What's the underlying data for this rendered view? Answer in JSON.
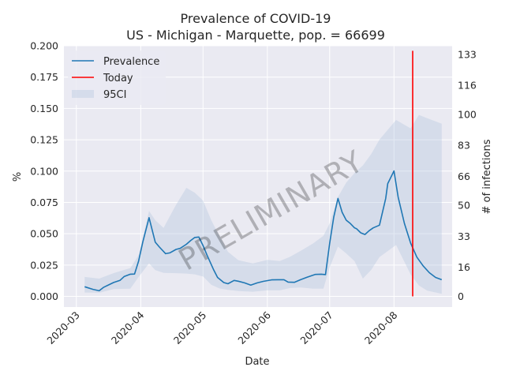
{
  "chart_data": {
    "type": "line",
    "title": "Prevalence of COVID-19",
    "subtitle": "US - Michigan - Marquette, pop. = 66699",
    "xlabel": "Date",
    "ylabel_left": "%",
    "ylabel_right": "# of infections",
    "x_ticks": [
      "2020-03",
      "2020-04",
      "2020-05",
      "2020-06",
      "2020-07",
      "2020-08"
    ],
    "x_tick_dates": [
      "2020-03-01",
      "2020-04-01",
      "2020-05-01",
      "2020-06-01",
      "2020-07-01",
      "2020-08-01"
    ],
    "xlim": [
      "2020-02-24",
      "2020-08-29"
    ],
    "ylim_left": [
      -0.0085,
      0.2
    ],
    "y_ticks_left": [
      "0.000",
      "0.025",
      "0.050",
      "0.075",
      "0.100",
      "0.125",
      "0.150",
      "0.175",
      "0.200"
    ],
    "y_tick_values_left": [
      0,
      0.025,
      0.05,
      0.075,
      0.1,
      0.125,
      0.15,
      0.175,
      0.2
    ],
    "y_ticks_right": [
      "0",
      "16",
      "33",
      "50",
      "66",
      "83",
      "100",
      "116",
      "133"
    ],
    "y_tick_values_right": [
      0,
      16,
      33,
      50,
      66,
      83,
      100,
      116,
      133
    ],
    "grid": true,
    "legend_position": "upper-left",
    "legend": [
      "Prevalence",
      "Today",
      "95CI"
    ],
    "watermark": "PRELIMINARY",
    "today": "2020-08-10",
    "series": [
      {
        "name": "Prevalence",
        "color": "#1f77b4",
        "x": [
          "2020-03-05",
          "2020-03-09",
          "2020-03-12",
          "2020-03-14",
          "2020-03-17",
          "2020-03-19",
          "2020-03-22",
          "2020-03-24",
          "2020-03-27",
          "2020-03-29",
          "2020-03-31",
          "2020-04-02",
          "2020-04-05",
          "2020-04-08",
          "2020-04-10",
          "2020-04-13",
          "2020-04-15",
          "2020-04-18",
          "2020-04-20",
          "2020-04-23",
          "2020-04-25",
          "2020-04-27",
          "2020-04-29",
          "2020-05-01",
          "2020-05-03",
          "2020-05-06",
          "2020-05-08",
          "2020-05-11",
          "2020-05-13",
          "2020-05-16",
          "2020-05-18",
          "2020-05-21",
          "2020-05-24",
          "2020-05-27",
          "2020-05-30",
          "2020-06-03",
          "2020-06-06",
          "2020-06-09",
          "2020-06-11",
          "2020-06-14",
          "2020-06-17",
          "2020-06-20",
          "2020-06-24",
          "2020-06-27",
          "2020-06-29",
          "2020-07-01",
          "2020-07-03",
          "2020-07-05",
          "2020-07-07",
          "2020-07-09",
          "2020-07-11",
          "2020-07-13",
          "2020-07-14",
          "2020-07-16",
          "2020-07-18",
          "2020-07-20",
          "2020-07-22",
          "2020-07-25",
          "2020-07-28",
          "2020-07-29",
          "2020-08-01",
          "2020-08-03",
          "2020-08-06",
          "2020-08-09",
          "2020-08-12",
          "2020-08-15",
          "2020-08-18",
          "2020-08-21",
          "2020-08-24"
        ],
        "values": [
          0.0077,
          0.0056,
          0.0045,
          0.0071,
          0.0095,
          0.0111,
          0.0127,
          0.0158,
          0.0177,
          0.0178,
          0.0283,
          0.0434,
          0.0628,
          0.0432,
          0.0394,
          0.0341,
          0.0347,
          0.0375,
          0.0383,
          0.0416,
          0.0445,
          0.047,
          0.0474,
          0.0406,
          0.0327,
          0.0217,
          0.0151,
          0.011,
          0.0101,
          0.0127,
          0.0121,
          0.0108,
          0.009,
          0.0107,
          0.012,
          0.0132,
          0.0133,
          0.0133,
          0.0114,
          0.0112,
          0.0133,
          0.0152,
          0.0175,
          0.0177,
          0.0174,
          0.0424,
          0.0634,
          0.0782,
          0.0671,
          0.0608,
          0.0581,
          0.0547,
          0.0539,
          0.0507,
          0.0494,
          0.0524,
          0.0547,
          0.0568,
          0.0781,
          0.09,
          0.1001,
          0.0792,
          0.0583,
          0.0425,
          0.0313,
          0.0244,
          0.0189,
          0.0151,
          0.0133
        ]
      },
      {
        "name": "95CI",
        "color": "#b0c4de",
        "x": [
          "2020-03-05",
          "2020-03-12",
          "2020-03-19",
          "2020-03-27",
          "2020-03-31",
          "2020-04-05",
          "2020-04-08",
          "2020-04-12",
          "2020-04-18",
          "2020-04-23",
          "2020-04-27",
          "2020-05-01",
          "2020-05-05",
          "2020-05-09",
          "2020-05-13",
          "2020-05-18",
          "2020-05-25",
          "2020-06-01",
          "2020-06-07",
          "2020-06-12",
          "2020-06-17",
          "2020-06-23",
          "2020-06-28",
          "2020-07-01",
          "2020-07-05",
          "2020-07-09",
          "2020-07-13",
          "2020-07-17",
          "2020-07-21",
          "2020-07-25",
          "2020-08-02",
          "2020-08-09",
          "2020-08-13",
          "2020-08-17",
          "2020-08-24"
        ],
        "upper": [
          0.0155,
          0.0142,
          0.0186,
          0.0226,
          0.0329,
          0.0682,
          0.0608,
          0.0546,
          0.0731,
          0.0866,
          0.0828,
          0.0765,
          0.0607,
          0.0478,
          0.0356,
          0.0289,
          0.0263,
          0.0291,
          0.0282,
          0.0316,
          0.0363,
          0.0422,
          0.0483,
          0.0583,
          0.0794,
          0.0908,
          0.0984,
          0.1045,
          0.1136,
          0.1251,
          0.1408,
          0.1341,
          0.1448,
          0.1422,
          0.1378
        ],
        "lower": [
          0.0031,
          0.0029,
          0.0058,
          0.0062,
          0.0155,
          0.0264,
          0.021,
          0.0188,
          0.0185,
          0.0182,
          0.0176,
          0.0159,
          0.0092,
          0.0063,
          0.0052,
          0.0043,
          0.0037,
          0.0048,
          0.0048,
          0.0067,
          0.0071,
          0.0062,
          0.0061,
          0.0232,
          0.0397,
          0.0343,
          0.0281,
          0.0142,
          0.0211,
          0.0313,
          0.041,
          0.0175,
          0.0087,
          0.0046,
          0.0021
        ]
      }
    ]
  }
}
